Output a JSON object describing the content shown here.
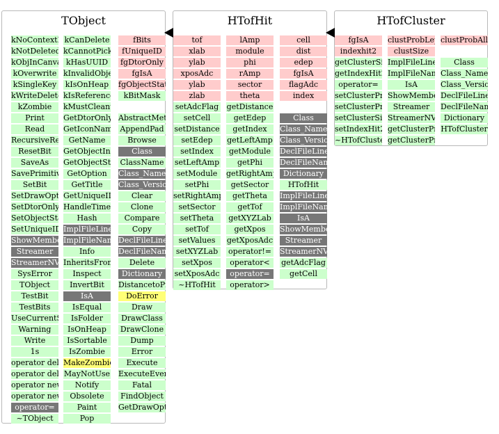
{
  "colors": {
    "data_member": "#ffcccc",
    "function_member": "#ccffcc",
    "inherited_member": "#777777",
    "protected_member": "#ffff77",
    "box_border": "#b8b8b8"
  },
  "classes": [
    {
      "name": "TObject",
      "columns": [
        [
          {
            "t": "kNoContextMenu",
            "k": "f"
          },
          {
            "t": "kNotDeleted",
            "k": "f"
          },
          {
            "t": "kObjInCanvas",
            "k": "f"
          },
          {
            "t": "kOverwrite",
            "k": "f"
          },
          {
            "t": "kSingleKey",
            "k": "f"
          },
          {
            "t": "kWriteDelete",
            "k": "f"
          },
          {
            "t": "kZombie",
            "k": "f"
          },
          {
            "t": "Print",
            "k": "f"
          },
          {
            "t": "Read",
            "k": "f"
          },
          {
            "t": "RecursiveRemove",
            "k": "f"
          },
          {
            "t": "ResetBit",
            "k": "f"
          },
          {
            "t": "SaveAs",
            "k": "f"
          },
          {
            "t": "SavePrimitive",
            "k": "f"
          },
          {
            "t": "SetBit",
            "k": "f"
          },
          {
            "t": "SetDrawOption",
            "k": "f"
          },
          {
            "t": "SetDtorOnly",
            "k": "f"
          },
          {
            "t": "SetObjectStat",
            "k": "f"
          },
          {
            "t": "SetUniqueID",
            "k": "f"
          },
          {
            "t": "ShowMembers",
            "k": "i"
          },
          {
            "t": "Streamer",
            "k": "i"
          },
          {
            "t": "StreamerNVirtual",
            "k": "i"
          },
          {
            "t": "SysError",
            "k": "f"
          },
          {
            "t": "TObject",
            "k": "f"
          },
          {
            "t": "TestBit",
            "k": "f"
          },
          {
            "t": "TestBits",
            "k": "f"
          },
          {
            "t": "UseCurrentStyle",
            "k": "f"
          },
          {
            "t": "Warning",
            "k": "f"
          },
          {
            "t": "Write",
            "k": "f"
          },
          {
            "t": "1s",
            "k": "f"
          },
          {
            "t": "operator delete",
            "k": "f"
          },
          {
            "t": "operator delete[]",
            "k": "f"
          },
          {
            "t": "operator new",
            "k": "f"
          },
          {
            "t": "operator new[]",
            "k": "f"
          },
          {
            "t": "operator=",
            "k": "i"
          },
          {
            "t": "~TObject",
            "k": "f"
          }
        ],
        [
          {
            "t": "kCanDelete",
            "k": "f"
          },
          {
            "t": "kCannotPick",
            "k": "f"
          },
          {
            "t": "kHasUUID",
            "k": "f"
          },
          {
            "t": "kInvalidObject",
            "k": "f"
          },
          {
            "t": "kIsOnHeap",
            "k": "f"
          },
          {
            "t": "kIsReferenced",
            "k": "f"
          },
          {
            "t": "kMustCleanup",
            "k": "f"
          },
          {
            "t": "GetDtorOnly",
            "k": "f"
          },
          {
            "t": "GetIconName",
            "k": "f"
          },
          {
            "t": "GetName",
            "k": "f"
          },
          {
            "t": "GetObjectInfo",
            "k": "f"
          },
          {
            "t": "GetObjectStat",
            "k": "f"
          },
          {
            "t": "GetOption",
            "k": "f"
          },
          {
            "t": "GetTitle",
            "k": "f"
          },
          {
            "t": "GetUniqueID",
            "k": "f"
          },
          {
            "t": "HandleTimer",
            "k": "f"
          },
          {
            "t": "Hash",
            "k": "f"
          },
          {
            "t": "ImplFileLine",
            "k": "i"
          },
          {
            "t": "ImplFileName",
            "k": "i"
          },
          {
            "t": "Info",
            "k": "f"
          },
          {
            "t": "InheritsFrom",
            "k": "f"
          },
          {
            "t": "Inspect",
            "k": "f"
          },
          {
            "t": "InvertBit",
            "k": "f"
          },
          {
            "t": "IsA",
            "k": "i"
          },
          {
            "t": "IsEqual",
            "k": "f"
          },
          {
            "t": "IsFolder",
            "k": "f"
          },
          {
            "t": "IsOnHeap",
            "k": "f"
          },
          {
            "t": "IsSortable",
            "k": "f"
          },
          {
            "t": "IsZombie",
            "k": "f"
          },
          {
            "t": "MakeZombie",
            "k": "p"
          },
          {
            "t": "MayNotUse",
            "k": "f"
          },
          {
            "t": "Notify",
            "k": "f"
          },
          {
            "t": "Obsolete",
            "k": "f"
          },
          {
            "t": "Paint",
            "k": "f"
          },
          {
            "t": "Pop",
            "k": "f"
          }
        ],
        [
          {
            "t": "fBits",
            "k": "m"
          },
          {
            "t": "fUniqueID",
            "k": "m"
          },
          {
            "t": "fgDtorOnly",
            "k": "m"
          },
          {
            "t": "fgIsA",
            "k": "m"
          },
          {
            "t": "fgObjectStat",
            "k": "m"
          },
          {
            "t": "kBitMask",
            "k": "f"
          },
          {
            "t": "",
            "k": "blank"
          },
          {
            "t": "AbstractMethod",
            "k": "f"
          },
          {
            "t": "AppendPad",
            "k": "f"
          },
          {
            "t": "Browse",
            "k": "f"
          },
          {
            "t": "Class",
            "k": "i"
          },
          {
            "t": "ClassName",
            "k": "f"
          },
          {
            "t": "Class_Name",
            "k": "i"
          },
          {
            "t": "Class_Version",
            "k": "i"
          },
          {
            "t": "Clear",
            "k": "f"
          },
          {
            "t": "Clone",
            "k": "f"
          },
          {
            "t": "Compare",
            "k": "f"
          },
          {
            "t": "Copy",
            "k": "f"
          },
          {
            "t": "DeclFileLine",
            "k": "i"
          },
          {
            "t": "DeclFileName",
            "k": "i"
          },
          {
            "t": "Delete",
            "k": "f"
          },
          {
            "t": "Dictionary",
            "k": "i"
          },
          {
            "t": "DistancetoPrimitive",
            "k": "f"
          },
          {
            "t": "DoError",
            "k": "p"
          },
          {
            "t": "Draw",
            "k": "f"
          },
          {
            "t": "DrawClass",
            "k": "f"
          },
          {
            "t": "DrawClone",
            "k": "f"
          },
          {
            "t": "Dump",
            "k": "f"
          },
          {
            "t": "Error",
            "k": "f"
          },
          {
            "t": "Execute",
            "k": "f"
          },
          {
            "t": "ExecuteEvent",
            "k": "f"
          },
          {
            "t": "Fatal",
            "k": "f"
          },
          {
            "t": "FindObject",
            "k": "f"
          },
          {
            "t": "GetDrawOption",
            "k": "f"
          }
        ]
      ]
    },
    {
      "name": "HTofHit",
      "columns": [
        [
          {
            "t": "tof",
            "k": "m"
          },
          {
            "t": "xlab",
            "k": "m"
          },
          {
            "t": "ylab",
            "k": "m"
          },
          {
            "t": "xposAdc",
            "k": "m"
          },
          {
            "t": "ylab",
            "k": "m"
          },
          {
            "t": "zlab",
            "k": "m"
          },
          {
            "t": "setAdcFlag",
            "k": "f"
          },
          {
            "t": "setCell",
            "k": "f"
          },
          {
            "t": "setDistance",
            "k": "f"
          },
          {
            "t": "setEdep",
            "k": "f"
          },
          {
            "t": "setIndex",
            "k": "f"
          },
          {
            "t": "setLeftAmp",
            "k": "f"
          },
          {
            "t": "setModule",
            "k": "f"
          },
          {
            "t": "setPhi",
            "k": "f"
          },
          {
            "t": "setRightAmp",
            "k": "f"
          },
          {
            "t": "setSector",
            "k": "f"
          },
          {
            "t": "setTheta",
            "k": "f"
          },
          {
            "t": "setTof",
            "k": "f"
          },
          {
            "t": "setValues",
            "k": "f"
          },
          {
            "t": "setXYZLab",
            "k": "f"
          },
          {
            "t": "setXpos",
            "k": "f"
          },
          {
            "t": "setXposAdc",
            "k": "f"
          },
          {
            "t": "~HTofHit",
            "k": "f"
          }
        ],
        [
          {
            "t": "lAmp",
            "k": "m"
          },
          {
            "t": "module",
            "k": "m"
          },
          {
            "t": "phi",
            "k": "m"
          },
          {
            "t": "rAmp",
            "k": "m"
          },
          {
            "t": "sector",
            "k": "m"
          },
          {
            "t": "theta",
            "k": "m"
          },
          {
            "t": "getDistance",
            "k": "f"
          },
          {
            "t": "getEdep",
            "k": "f"
          },
          {
            "t": "getIndex",
            "k": "f"
          },
          {
            "t": "getLeftAmp",
            "k": "f"
          },
          {
            "t": "getModule",
            "k": "f"
          },
          {
            "t": "getPhi",
            "k": "f"
          },
          {
            "t": "getRightAmp",
            "k": "f"
          },
          {
            "t": "getSector",
            "k": "f"
          },
          {
            "t": "getTheta",
            "k": "f"
          },
          {
            "t": "getTof",
            "k": "f"
          },
          {
            "t": "getXYZLab",
            "k": "f"
          },
          {
            "t": "getXpos",
            "k": "f"
          },
          {
            "t": "getXposAdc",
            "k": "f"
          },
          {
            "t": "operator!=",
            "k": "f"
          },
          {
            "t": "operator<",
            "k": "f"
          },
          {
            "t": "operator=",
            "k": "i"
          },
          {
            "t": "operator>",
            "k": "f"
          }
        ],
        [
          {
            "t": "cell",
            "k": "m"
          },
          {
            "t": "dist",
            "k": "m"
          },
          {
            "t": "edep",
            "k": "m"
          },
          {
            "t": "fgIsA",
            "k": "m"
          },
          {
            "t": "flagAdc",
            "k": "m"
          },
          {
            "t": "index",
            "k": "m"
          },
          {
            "t": "",
            "k": "blank"
          },
          {
            "t": "Class",
            "k": "i"
          },
          {
            "t": "Class_Name",
            "k": "i"
          },
          {
            "t": "Class_Version",
            "k": "i"
          },
          {
            "t": "DeclFileLine",
            "k": "i"
          },
          {
            "t": "DeclFileName",
            "k": "i"
          },
          {
            "t": "Dictionary",
            "k": "i"
          },
          {
            "t": "HTofHit",
            "k": "f"
          },
          {
            "t": "ImplFileLine",
            "k": "i"
          },
          {
            "t": "ImplFileName",
            "k": "i"
          },
          {
            "t": "IsA",
            "k": "i"
          },
          {
            "t": "ShowMembers",
            "k": "i"
          },
          {
            "t": "Streamer",
            "k": "i"
          },
          {
            "t": "StreamerNVirtual",
            "k": "i"
          },
          {
            "t": "getAdcFlag",
            "k": "f"
          },
          {
            "t": "getCell",
            "k": "f"
          }
        ]
      ]
    },
    {
      "name": "HTofCluster",
      "columns": [
        [
          {
            "t": "fgIsA",
            "k": "m"
          },
          {
            "t": "indexhit2",
            "k": "m"
          },
          {
            "t": "getClusterSize",
            "k": "f"
          },
          {
            "t": "getIndexHit2",
            "k": "f"
          },
          {
            "t": "operator=",
            "k": "f"
          },
          {
            "t": "setClusterProbAll",
            "k": "f"
          },
          {
            "t": "setClusterProbLep",
            "k": "f"
          },
          {
            "t": "setClusterSize",
            "k": "f"
          },
          {
            "t": "setIndexHit2",
            "k": "f"
          },
          {
            "t": "~HTofCluster",
            "k": "f"
          }
        ],
        [
          {
            "t": "clustProbLep",
            "k": "m"
          },
          {
            "t": "clustSize",
            "k": "m"
          },
          {
            "t": "ImplFileLine",
            "k": "f"
          },
          {
            "t": "ImplFileName",
            "k": "f"
          },
          {
            "t": "IsA",
            "k": "f"
          },
          {
            "t": "ShowMembers",
            "k": "f"
          },
          {
            "t": "Streamer",
            "k": "f"
          },
          {
            "t": "StreamerNVirtual",
            "k": "f"
          },
          {
            "t": "getClusterProbAll",
            "k": "f"
          },
          {
            "t": "getClusterProbLep",
            "k": "f"
          }
        ],
        [
          {
            "t": "clustProbAll",
            "k": "m"
          },
          {
            "t": "",
            "k": "blank"
          },
          {
            "t": "Class",
            "k": "f"
          },
          {
            "t": "Class_Name",
            "k": "f"
          },
          {
            "t": "Class_Version",
            "k": "f"
          },
          {
            "t": "DeclFileLine",
            "k": "f"
          },
          {
            "t": "DeclFileName",
            "k": "f"
          },
          {
            "t": "Dictionary",
            "k": "f"
          },
          {
            "t": "HTofCluster",
            "k": "f"
          }
        ]
      ]
    }
  ]
}
